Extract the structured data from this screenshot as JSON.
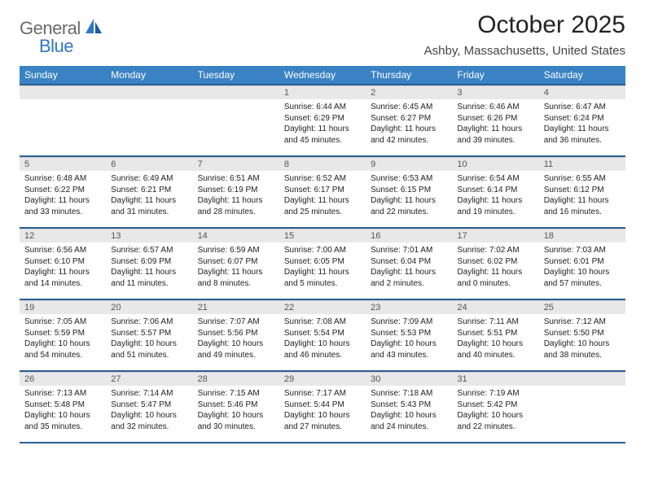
{
  "logo": {
    "text1": "General",
    "text2": "Blue"
  },
  "title": "October 2025",
  "location": "Ashby, Massachusetts, United States",
  "colors": {
    "header_bg": "#3a82c4",
    "header_border": "#2a5f94",
    "daynum_bg": "#e8e8e8",
    "logo_gray": "#6a6a6a",
    "logo_blue": "#2f78c2"
  },
  "dayNames": [
    "Sunday",
    "Monday",
    "Tuesday",
    "Wednesday",
    "Thursday",
    "Friday",
    "Saturday"
  ],
  "weeks": [
    [
      {
        "n": "",
        "lines": []
      },
      {
        "n": "",
        "lines": []
      },
      {
        "n": "",
        "lines": []
      },
      {
        "n": "1",
        "lines": [
          "Sunrise: 6:44 AM",
          "Sunset: 6:29 PM",
          "Daylight: 11 hours",
          "and 45 minutes."
        ]
      },
      {
        "n": "2",
        "lines": [
          "Sunrise: 6:45 AM",
          "Sunset: 6:27 PM",
          "Daylight: 11 hours",
          "and 42 minutes."
        ]
      },
      {
        "n": "3",
        "lines": [
          "Sunrise: 6:46 AM",
          "Sunset: 6:26 PM",
          "Daylight: 11 hours",
          "and 39 minutes."
        ]
      },
      {
        "n": "4",
        "lines": [
          "Sunrise: 6:47 AM",
          "Sunset: 6:24 PM",
          "Daylight: 11 hours",
          "and 36 minutes."
        ]
      }
    ],
    [
      {
        "n": "5",
        "lines": [
          "Sunrise: 6:48 AM",
          "Sunset: 6:22 PM",
          "Daylight: 11 hours",
          "and 33 minutes."
        ]
      },
      {
        "n": "6",
        "lines": [
          "Sunrise: 6:49 AM",
          "Sunset: 6:21 PM",
          "Daylight: 11 hours",
          "and 31 minutes."
        ]
      },
      {
        "n": "7",
        "lines": [
          "Sunrise: 6:51 AM",
          "Sunset: 6:19 PM",
          "Daylight: 11 hours",
          "and 28 minutes."
        ]
      },
      {
        "n": "8",
        "lines": [
          "Sunrise: 6:52 AM",
          "Sunset: 6:17 PM",
          "Daylight: 11 hours",
          "and 25 minutes."
        ]
      },
      {
        "n": "9",
        "lines": [
          "Sunrise: 6:53 AM",
          "Sunset: 6:15 PM",
          "Daylight: 11 hours",
          "and 22 minutes."
        ]
      },
      {
        "n": "10",
        "lines": [
          "Sunrise: 6:54 AM",
          "Sunset: 6:14 PM",
          "Daylight: 11 hours",
          "and 19 minutes."
        ]
      },
      {
        "n": "11",
        "lines": [
          "Sunrise: 6:55 AM",
          "Sunset: 6:12 PM",
          "Daylight: 11 hours",
          "and 16 minutes."
        ]
      }
    ],
    [
      {
        "n": "12",
        "lines": [
          "Sunrise: 6:56 AM",
          "Sunset: 6:10 PM",
          "Daylight: 11 hours",
          "and 14 minutes."
        ]
      },
      {
        "n": "13",
        "lines": [
          "Sunrise: 6:57 AM",
          "Sunset: 6:09 PM",
          "Daylight: 11 hours",
          "and 11 minutes."
        ]
      },
      {
        "n": "14",
        "lines": [
          "Sunrise: 6:59 AM",
          "Sunset: 6:07 PM",
          "Daylight: 11 hours",
          "and 8 minutes."
        ]
      },
      {
        "n": "15",
        "lines": [
          "Sunrise: 7:00 AM",
          "Sunset: 6:05 PM",
          "Daylight: 11 hours",
          "and 5 minutes."
        ]
      },
      {
        "n": "16",
        "lines": [
          "Sunrise: 7:01 AM",
          "Sunset: 6:04 PM",
          "Daylight: 11 hours",
          "and 2 minutes."
        ]
      },
      {
        "n": "17",
        "lines": [
          "Sunrise: 7:02 AM",
          "Sunset: 6:02 PM",
          "Daylight: 11 hours",
          "and 0 minutes."
        ]
      },
      {
        "n": "18",
        "lines": [
          "Sunrise: 7:03 AM",
          "Sunset: 6:01 PM",
          "Daylight: 10 hours",
          "and 57 minutes."
        ]
      }
    ],
    [
      {
        "n": "19",
        "lines": [
          "Sunrise: 7:05 AM",
          "Sunset: 5:59 PM",
          "Daylight: 10 hours",
          "and 54 minutes."
        ]
      },
      {
        "n": "20",
        "lines": [
          "Sunrise: 7:06 AM",
          "Sunset: 5:57 PM",
          "Daylight: 10 hours",
          "and 51 minutes."
        ]
      },
      {
        "n": "21",
        "lines": [
          "Sunrise: 7:07 AM",
          "Sunset: 5:56 PM",
          "Daylight: 10 hours",
          "and 49 minutes."
        ]
      },
      {
        "n": "22",
        "lines": [
          "Sunrise: 7:08 AM",
          "Sunset: 5:54 PM",
          "Daylight: 10 hours",
          "and 46 minutes."
        ]
      },
      {
        "n": "23",
        "lines": [
          "Sunrise: 7:09 AM",
          "Sunset: 5:53 PM",
          "Daylight: 10 hours",
          "and 43 minutes."
        ]
      },
      {
        "n": "24",
        "lines": [
          "Sunrise: 7:11 AM",
          "Sunset: 5:51 PM",
          "Daylight: 10 hours",
          "and 40 minutes."
        ]
      },
      {
        "n": "25",
        "lines": [
          "Sunrise: 7:12 AM",
          "Sunset: 5:50 PM",
          "Daylight: 10 hours",
          "and 38 minutes."
        ]
      }
    ],
    [
      {
        "n": "26",
        "lines": [
          "Sunrise: 7:13 AM",
          "Sunset: 5:48 PM",
          "Daylight: 10 hours",
          "and 35 minutes."
        ]
      },
      {
        "n": "27",
        "lines": [
          "Sunrise: 7:14 AM",
          "Sunset: 5:47 PM",
          "Daylight: 10 hours",
          "and 32 minutes."
        ]
      },
      {
        "n": "28",
        "lines": [
          "Sunrise: 7:15 AM",
          "Sunset: 5:46 PM",
          "Daylight: 10 hours",
          "and 30 minutes."
        ]
      },
      {
        "n": "29",
        "lines": [
          "Sunrise: 7:17 AM",
          "Sunset: 5:44 PM",
          "Daylight: 10 hours",
          "and 27 minutes."
        ]
      },
      {
        "n": "30",
        "lines": [
          "Sunrise: 7:18 AM",
          "Sunset: 5:43 PM",
          "Daylight: 10 hours",
          "and 24 minutes."
        ]
      },
      {
        "n": "31",
        "lines": [
          "Sunrise: 7:19 AM",
          "Sunset: 5:42 PM",
          "Daylight: 10 hours",
          "and 22 minutes."
        ]
      },
      {
        "n": "",
        "lines": []
      }
    ]
  ]
}
